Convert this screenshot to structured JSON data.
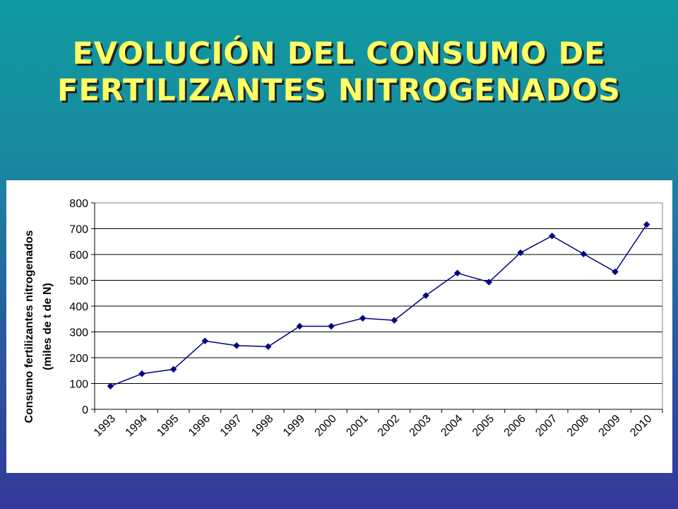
{
  "slide": {
    "title_line1": "EVOLUCIÓN DEL CONSUMO DE",
    "title_line2": "FERTILIZANTES NITROGENADOS"
  },
  "colors": {
    "title": "#ffff66",
    "series": "#000080",
    "gridline": "#000000"
  },
  "chart_data": {
    "type": "line",
    "title": "",
    "xlabel": "",
    "ylabel_line1": "Consumo fertilizantes nitrogenados",
    "ylabel_line2": "(miles de t de N)",
    "ylim": [
      0,
      800
    ],
    "yticks": [
      0,
      100,
      200,
      300,
      400,
      500,
      600,
      700,
      800
    ],
    "grid": true,
    "categories": [
      "1993",
      "1994",
      "1995",
      "1996",
      "1997",
      "1998",
      "1999",
      "2000",
      "2001",
      "2002",
      "2003",
      "2004",
      "2005",
      "2006",
      "2007",
      "2008",
      "2009",
      "2010"
    ],
    "series": [
      {
        "values": [
          90,
          138,
          155,
          265,
          247,
          243,
          322,
          322,
          353,
          345,
          441,
          528,
          493,
          607,
          672,
          602,
          533,
          716
        ],
        "marker": "diamond"
      }
    ]
  }
}
